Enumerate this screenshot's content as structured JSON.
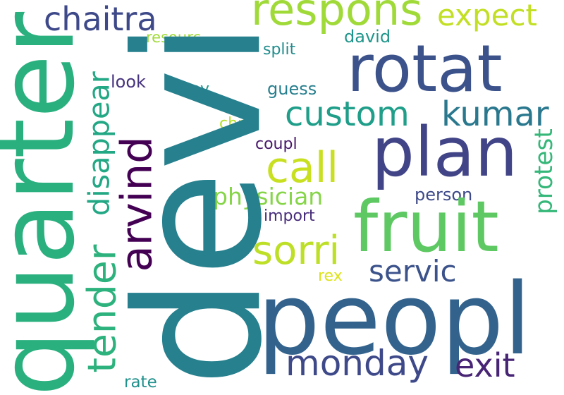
{
  "words": {
    "devi": {
      "text": "devi",
      "color": "#26808e"
    },
    "quarter": {
      "text": "quarter",
      "color": "#2ab07f"
    },
    "peopl": {
      "text": "peopl",
      "color": "#33638d"
    },
    "fruit": {
      "text": "fruit",
      "color": "#5ec962"
    },
    "plan": {
      "text": "plan",
      "color": "#414487"
    },
    "rotat": {
      "text": "rotat",
      "color": "#3b528b"
    },
    "respons": {
      "text": "respons",
      "color": "#a0da39"
    },
    "expect": {
      "text": "expect",
      "color": "#c2df23"
    },
    "chaitra": {
      "text": "chaitra",
      "color": "#3e4989"
    },
    "custom": {
      "text": "custom",
      "color": "#1f9e89"
    },
    "kumar": {
      "text": "kumar",
      "color": "#2a788e"
    },
    "call": {
      "text": "call",
      "color": "#c8e020"
    },
    "disappear": {
      "text": "disappear",
      "color": "#22a884"
    },
    "arvind": {
      "text": "arvind",
      "color": "#440154"
    },
    "tender": {
      "text": "tender",
      "color": "#2db27d"
    },
    "sorri": {
      "text": "sorri",
      "color": "#bddf26"
    },
    "physician": {
      "text": "physician",
      "color": "#86d549"
    },
    "servic": {
      "text": "servic",
      "color": "#3b528b"
    },
    "monday": {
      "text": "monday",
      "color": "#3e4989"
    },
    "exit": {
      "text": "exit",
      "color": "#482475"
    },
    "david": {
      "text": "david",
      "color": "#1f968b"
    },
    "resourc": {
      "text": "resourc",
      "color": "#a0da39"
    },
    "split": {
      "text": "split",
      "color": "#228c8d"
    },
    "look": {
      "text": "look",
      "color": "#46337e"
    },
    "roy": {
      "text": "roy",
      "color": "#1f9a8a"
    },
    "guess": {
      "text": "guess",
      "color": "#277f8e"
    },
    "chri": {
      "text": "chri",
      "color": "#b5de2b"
    },
    "coupl": {
      "text": "coupl",
      "color": "#48186a"
    },
    "protest": {
      "text": "protest",
      "color": "#35b779"
    },
    "person": {
      "text": "person",
      "color": "#3e4a89"
    },
    "import": {
      "text": "import",
      "color": "#472c7a"
    },
    "rex": {
      "text": "rex",
      "color": "#dde318"
    },
    "rate": {
      "text": "rate",
      "color": "#21918c"
    }
  }
}
